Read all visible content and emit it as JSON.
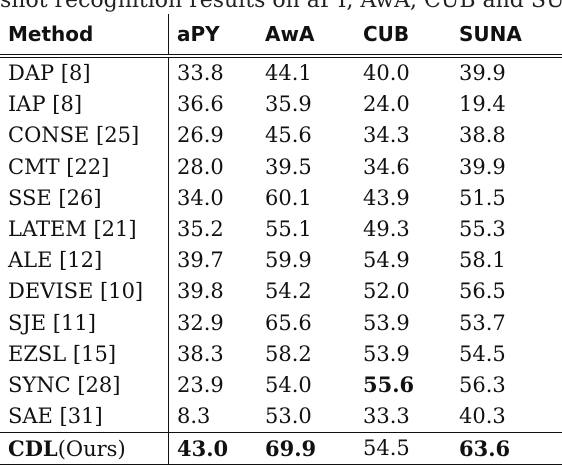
{
  "caption": "shot recognition results on aPY, AwA, CUB and SUN",
  "table": {
    "headers": [
      "Method",
      "aPY",
      "AwA",
      "CUB",
      "SUNA"
    ],
    "rows": [
      {
        "method": "DAP [8]",
        "apy": "33.8",
        "awa": "44.1",
        "cub": "40.0",
        "suna": "39.9"
      },
      {
        "method": "IAP [8]",
        "apy": "36.6",
        "awa": "35.9",
        "cub": "24.0",
        "suna": "19.4"
      },
      {
        "method": "CONSE [25]",
        "apy": "26.9",
        "awa": "45.6",
        "cub": "34.3",
        "suna": "38.8"
      },
      {
        "method": "CMT [22]",
        "apy": "28.0",
        "awa": "39.5",
        "cub": "34.6",
        "suna": "39.9"
      },
      {
        "method": "SSE [26]",
        "apy": "34.0",
        "awa": "60.1",
        "cub": "43.9",
        "suna": "51.5"
      },
      {
        "method": "LATEM [21]",
        "apy": "35.2",
        "awa": "55.1",
        "cub": "49.3",
        "suna": "55.3"
      },
      {
        "method": "ALE [12]",
        "apy": "39.7",
        "awa": "59.9",
        "cub": "54.9",
        "suna": "58.1"
      },
      {
        "method": "DEVISE [10]",
        "apy": "39.8",
        "awa": "54.2",
        "cub": "52.0",
        "suna": "56.5"
      },
      {
        "method": "SJE [11]",
        "apy": "32.9",
        "awa": "65.6",
        "cub": "53.9",
        "suna": "53.7"
      },
      {
        "method": "EZSL [15]",
        "apy": "38.3",
        "awa": "58.2",
        "cub": "53.9",
        "suna": "54.5"
      },
      {
        "method": "SYNC [28]",
        "apy": "23.9",
        "awa": "54.0",
        "cub": "55.6",
        "suna": "56.3"
      },
      {
        "method": "SAE [31]",
        "apy": "8.3",
        "awa": "53.0",
        "cub": "33.3",
        "suna": "40.3"
      }
    ],
    "ours": {
      "method_bold": "CDL",
      "method_suffix": "(Ours)",
      "apy": "43.0",
      "awa": "69.9",
      "cub": "54.5",
      "suna": "63.6"
    }
  }
}
